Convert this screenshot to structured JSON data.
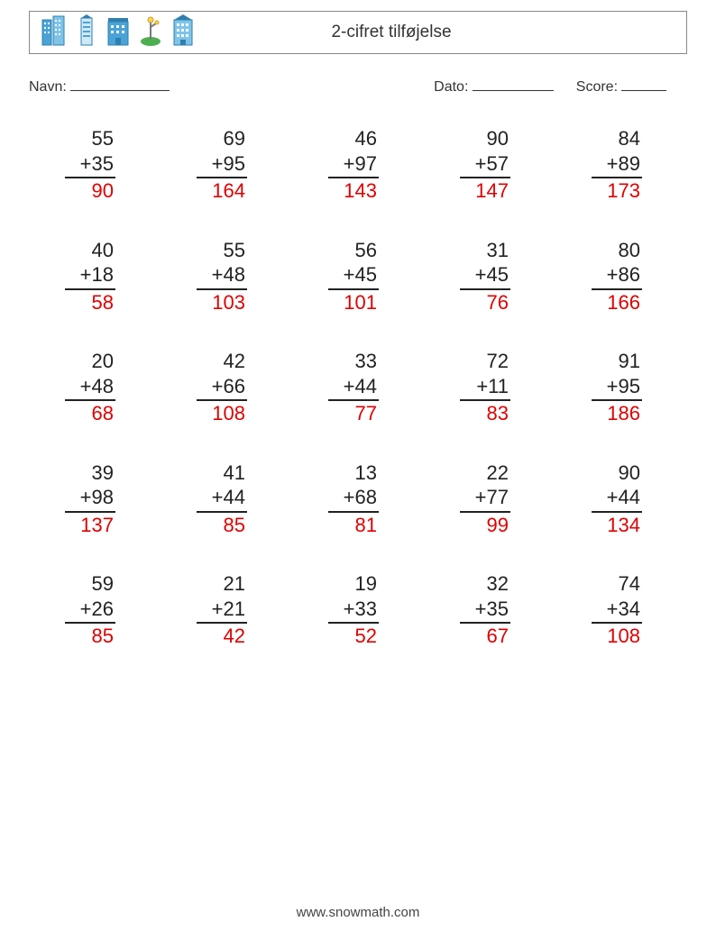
{
  "header": {
    "title": "2-cifret tilføjelse",
    "icon_color": "#4aa3d6",
    "icon_accent": "#2f7fae",
    "tree_color": "#4caf50"
  },
  "fields": {
    "name_label": "Navn:",
    "date_label": "Dato:",
    "score_label": "Score:"
  },
  "style": {
    "text_color": "#222222",
    "answer_color": "#e00000",
    "rule_color": "#222222",
    "font_size_problem": 22,
    "columns": 5,
    "rows": 5,
    "operator": "+"
  },
  "problems": [
    {
      "a": 55,
      "b": 35,
      "ans": 90
    },
    {
      "a": 69,
      "b": 95,
      "ans": 164
    },
    {
      "a": 46,
      "b": 97,
      "ans": 143
    },
    {
      "a": 90,
      "b": 57,
      "ans": 147
    },
    {
      "a": 84,
      "b": 89,
      "ans": 173
    },
    {
      "a": 40,
      "b": 18,
      "ans": 58
    },
    {
      "a": 55,
      "b": 48,
      "ans": 103
    },
    {
      "a": 56,
      "b": 45,
      "ans": 101
    },
    {
      "a": 31,
      "b": 45,
      "ans": 76
    },
    {
      "a": 80,
      "b": 86,
      "ans": 166
    },
    {
      "a": 20,
      "b": 48,
      "ans": 68
    },
    {
      "a": 42,
      "b": 66,
      "ans": 108
    },
    {
      "a": 33,
      "b": 44,
      "ans": 77
    },
    {
      "a": 72,
      "b": 11,
      "ans": 83
    },
    {
      "a": 91,
      "b": 95,
      "ans": 186
    },
    {
      "a": 39,
      "b": 98,
      "ans": 137
    },
    {
      "a": 41,
      "b": 44,
      "ans": 85
    },
    {
      "a": 13,
      "b": 68,
      "ans": 81
    },
    {
      "a": 22,
      "b": 77,
      "ans": 99
    },
    {
      "a": 90,
      "b": 44,
      "ans": 134
    },
    {
      "a": 59,
      "b": 26,
      "ans": 85
    },
    {
      "a": 21,
      "b": 21,
      "ans": 42
    },
    {
      "a": 19,
      "b": 33,
      "ans": 52
    },
    {
      "a": 32,
      "b": 35,
      "ans": 67
    },
    {
      "a": 74,
      "b": 34,
      "ans": 108
    }
  ],
  "footer": {
    "url": "www.snowmath.com"
  }
}
